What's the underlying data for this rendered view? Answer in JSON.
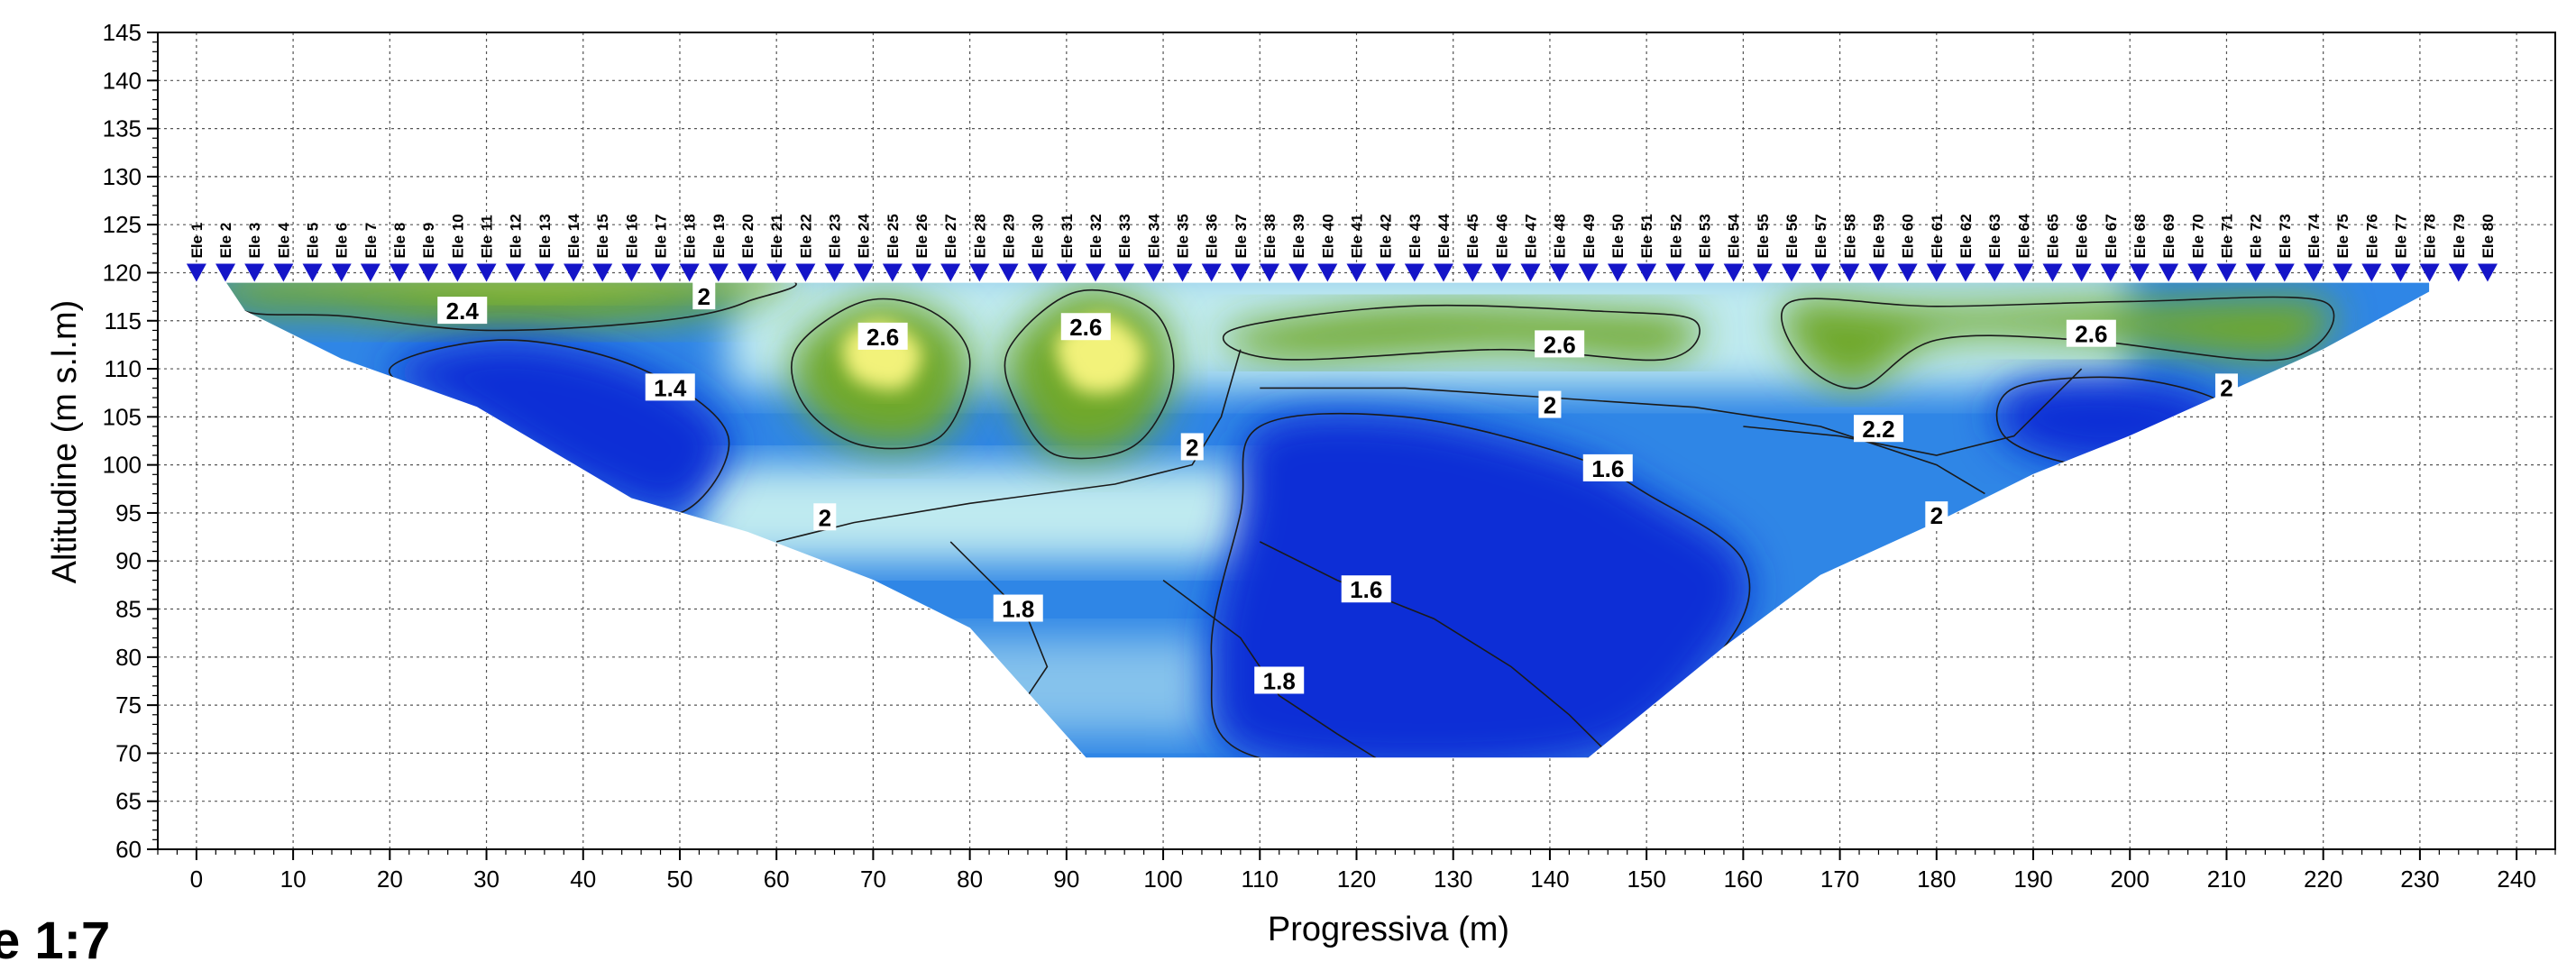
{
  "scale_label": "e 1:7",
  "colors": {
    "low": "#0a2fd6",
    "mid_low": "#2f86e6",
    "mid": "#bfeaf0",
    "mid_high": "#6fa82a",
    "high": "#f2f27a",
    "electrode": "#1515c8"
  },
  "chart_data": {
    "type": "heatmap",
    "title": "",
    "xlabel": "Progressiva (m)",
    "ylabel": "Altitudine (m s.l.m)",
    "xlim": [
      -4,
      244
    ],
    "ylim": [
      60,
      145
    ],
    "xticks": [
      0,
      10,
      20,
      30,
      40,
      50,
      60,
      70,
      80,
      90,
      100,
      110,
      120,
      130,
      140,
      150,
      160,
      170,
      180,
      190,
      200,
      210,
      220,
      230,
      240
    ],
    "yticks": [
      60,
      65,
      70,
      75,
      80,
      85,
      90,
      95,
      100,
      105,
      110,
      115,
      120,
      125,
      130,
      135,
      140,
      145
    ],
    "grid": true,
    "electrodes": {
      "start_x": 0,
      "spacing": 3,
      "elevation": 120,
      "labels": [
        "Ele 1",
        "Ele 2",
        "Ele 3",
        "Ele 4",
        "Ele 5",
        "Ele 6",
        "Ele 7",
        "Ele 8",
        "Ele 9",
        "Ele 10",
        "Ele 11",
        "Ele 12",
        "Ele 13",
        "Ele 14",
        "Ele 15",
        "Ele 16",
        "Ele 17",
        "Ele 18",
        "Ele 19",
        "Ele 20",
        "Ele 21",
        "Ele 22",
        "Ele 23",
        "Ele 24",
        "Ele 25",
        "Ele 26",
        "Ele 27",
        "Ele 28",
        "Ele 29",
        "Ele 30",
        "Ele 31",
        "Ele 32",
        "Ele 33",
        "Ele 34",
        "Ele 35",
        "Ele 36",
        "Ele 37",
        "Ele 38",
        "Ele 39",
        "Ele 40",
        "Ele 41",
        "Ele 42",
        "Ele 43",
        "Ele 44",
        "Ele 45",
        "Ele 46",
        "Ele 47",
        "Ele 48",
        "Ele 49",
        "Ele 50",
        "Ele 51",
        "Ele 52",
        "Ele 53",
        "Ele 54",
        "Ele 55",
        "Ele 56",
        "Ele 57",
        "Ele 58",
        "Ele 59",
        "Ele 60",
        "Ele 61",
        "Ele 62",
        "Ele 63",
        "Ele 64",
        "Ele 65",
        "Ele 66",
        "Ele 67",
        "Ele 68",
        "Ele 69",
        "Ele 70",
        "Ele 71",
        "Ele 72",
        "Ele 73",
        "Ele 74",
        "Ele 75",
        "Ele 76",
        "Ele 77",
        "Ele 78",
        "Ele 79",
        "Ele 80"
      ]
    },
    "section_outline": [
      [
        3,
        119
      ],
      [
        5,
        116
      ],
      [
        15,
        111
      ],
      [
        29,
        106
      ],
      [
        45,
        96.5
      ],
      [
        57,
        93
      ],
      [
        70,
        88
      ],
      [
        80,
        83
      ],
      [
        92,
        69.5
      ],
      [
        144,
        69.5
      ],
      [
        158,
        81
      ],
      [
        168,
        88.5
      ],
      [
        180,
        94
      ],
      [
        190,
        99
      ],
      [
        200,
        103
      ],
      [
        220,
        112
      ],
      [
        231,
        118
      ],
      [
        231,
        119
      ]
    ],
    "regions": [
      {
        "level": "high",
        "points": [
          [
            4,
            119
          ],
          [
            20,
            118
          ],
          [
            35,
            117
          ],
          [
            50,
            118
          ],
          [
            60,
            119
          ]
        ]
      },
      {
        "level": "mid_high",
        "points": [
          [
            4,
            119.5
          ],
          [
            5,
            116
          ],
          [
            15,
            115.5
          ],
          [
            30,
            114
          ],
          [
            48,
            115
          ],
          [
            57,
            117
          ],
          [
            58,
            119.5
          ]
        ]
      },
      {
        "level": "low",
        "points": [
          [
            20,
            110
          ],
          [
            32,
            113
          ],
          [
            46,
            110
          ],
          [
            55,
            103
          ],
          [
            50,
            95
          ],
          [
            40,
            98
          ],
          [
            28,
            105
          ]
        ]
      },
      {
        "level": "mid_high",
        "points": [
          [
            62,
            112
          ],
          [
            69,
            117
          ],
          [
            76,
            116
          ],
          [
            80,
            111
          ],
          [
            77,
            103
          ],
          [
            69,
            102
          ],
          [
            63,
            106
          ]
        ]
      },
      {
        "level": "high",
        "points": [
          [
            67,
            113
          ],
          [
            71,
            115
          ],
          [
            75,
            112
          ],
          [
            73,
            108
          ],
          [
            68,
            109
          ]
        ]
      },
      {
        "level": "mid_high",
        "points": [
          [
            84,
            112
          ],
          [
            91,
            118
          ],
          [
            99,
            116
          ],
          [
            101,
            109
          ],
          [
            97,
            102
          ],
          [
            89,
            101
          ],
          [
            85,
            106
          ]
        ]
      },
      {
        "level": "high",
        "points": [
          [
            89,
            113
          ],
          [
            94,
            115.5
          ],
          [
            98,
            112
          ],
          [
            96,
            108
          ],
          [
            91,
            108
          ]
        ]
      },
      {
        "level": "mid_high",
        "points": [
          [
            107,
            114
          ],
          [
            125,
            116.5
          ],
          [
            145,
            116
          ],
          [
            155,
            115
          ],
          [
            152,
            111
          ],
          [
            135,
            112
          ],
          [
            112,
            111
          ]
        ]
      },
      {
        "level": "mid_high",
        "points": [
          [
            165,
            117
          ],
          [
            180,
            116.5
          ],
          [
            200,
            117
          ],
          [
            220,
            117
          ],
          [
            216,
            111
          ],
          [
            195,
            113
          ],
          [
            180,
            113
          ],
          [
            172,
            108
          ],
          [
            166,
            111
          ]
        ]
      },
      {
        "level": "low",
        "points": [
          [
            110,
            104
          ],
          [
            125,
            105
          ],
          [
            142,
            101
          ],
          [
            150,
            97
          ],
          [
            160,
            90
          ],
          [
            158,
            81
          ],
          [
            144,
            69.5
          ],
          [
            110,
            69.5
          ],
          [
            105,
            80
          ],
          [
            108,
            95
          ]
        ]
      },
      {
        "level": "low",
        "points": [
          [
            188,
            108
          ],
          [
            200,
            109
          ],
          [
            210,
            106
          ],
          [
            205,
            101
          ],
          [
            195,
            100
          ],
          [
            187,
            103
          ]
        ]
      }
    ],
    "contours": [
      {
        "level": 2.4,
        "label_x": 27.5,
        "label_y": 116
      },
      {
        "level": 2,
        "label_x": 52.5,
        "label_y": 117.5
      },
      {
        "level": 1.4,
        "label_x": 49,
        "label_y": 108
      },
      {
        "level": 2.6,
        "label_x": 71,
        "label_y": 113.3
      },
      {
        "level": 2.6,
        "label_x": 92,
        "label_y": 114.3
      },
      {
        "level": 2,
        "label_x": 65,
        "label_y": 94.5
      },
      {
        "level": 1.8,
        "label_x": 85,
        "label_y": 85
      },
      {
        "level": 2,
        "label_x": 103,
        "label_y": 101.8
      },
      {
        "level": 2.6,
        "label_x": 141,
        "label_y": 112.5
      },
      {
        "level": 2,
        "label_x": 140,
        "label_y": 106.2
      },
      {
        "level": 1.6,
        "label_x": 146,
        "label_y": 99.6
      },
      {
        "level": 1.6,
        "label_x": 121,
        "label_y": 87
      },
      {
        "level": 1.8,
        "label_x": 112,
        "label_y": 77.5
      },
      {
        "level": 2.2,
        "label_x": 174,
        "label_y": 103.7
      },
      {
        "level": 2,
        "label_x": 180,
        "label_y": 94.7
      },
      {
        "level": 2.6,
        "label_x": 196,
        "label_y": 113.6
      },
      {
        "level": 2,
        "label_x": 210,
        "label_y": 108
      }
    ]
  }
}
